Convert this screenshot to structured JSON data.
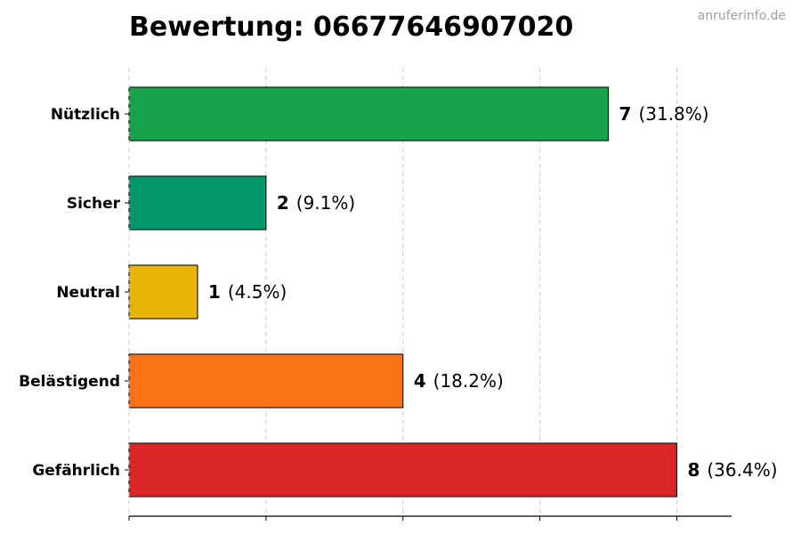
{
  "chart_data": {
    "type": "bar",
    "orientation": "horizontal",
    "title": "Bewertung: 06677646907020",
    "watermark": "anruferinfo.de",
    "categories": [
      "Nützlich",
      "Sicher",
      "Neutral",
      "Belästigend",
      "Gefährlich"
    ],
    "values": [
      7,
      2,
      1,
      4,
      8
    ],
    "percent_labels": [
      "(31.8%)",
      "(9.1%)",
      "(4.5%)",
      "(18.2%)",
      "(36.4%)"
    ],
    "colors": [
      "#16a34a",
      "#059669",
      "#eab308",
      "#f97316",
      "#dc2626"
    ],
    "xlim": [
      0,
      8.8
    ],
    "x_gridlines": [
      0,
      2,
      4,
      6,
      8
    ],
    "grid": true,
    "legend": "none"
  }
}
